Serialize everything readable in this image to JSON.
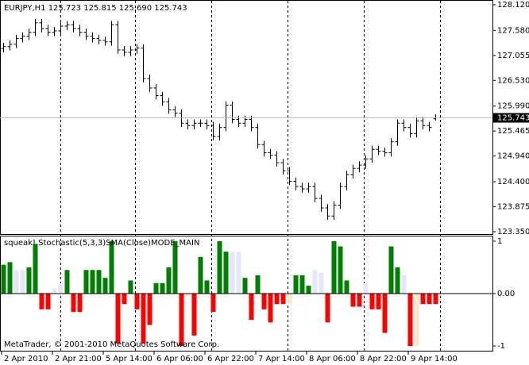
{
  "chart_data": [
    {
      "type": "ohlc",
      "title": "EURJPY,H1  125.723 125.815 125.690 125.743",
      "color": "#000000",
      "ylim": [
        123.3,
        128.203
      ],
      "yticks": [
        {
          "value": 128.12,
          "label": "128.120"
        },
        {
          "value": 127.58,
          "label": "127.580"
        },
        {
          "value": 127.055,
          "label": "127.055"
        },
        {
          "value": 126.53,
          "label": "126.530"
        },
        {
          "value": 125.99,
          "label": "125.990"
        },
        {
          "value": 125.465,
          "label": "125.465"
        },
        {
          "value": 124.94,
          "label": "124.940"
        },
        {
          "value": 124.4,
          "label": "124.400"
        },
        {
          "value": 123.875,
          "label": "123.875"
        },
        {
          "value": 123.35,
          "label": "123.350"
        }
      ],
      "last_price_label": "125.743",
      "open": [
        127.2,
        127.24,
        127.29,
        127.41,
        127.46,
        127.54,
        127.74,
        127.62,
        127.54,
        127.57,
        127.67,
        127.7,
        127.62,
        127.54,
        127.46,
        127.41,
        127.37,
        127.34,
        127.7,
        127.17,
        127.12,
        127.17,
        127.21,
        126.57,
        126.37,
        126.21,
        126.08,
        125.91,
        125.84,
        125.63,
        125.58,
        125.63,
        125.63,
        125.58,
        125.35,
        125.54,
        126.01,
        125.71,
        125.63,
        125.71,
        125.54,
        125.18,
        125.01,
        124.96,
        124.8,
        124.63,
        124.41,
        124.3,
        124.25,
        124.3,
        124.05,
        123.85,
        123.68,
        123.91,
        124.3,
        124.55,
        124.68,
        124.75,
        124.88,
        125.08,
        125.04,
        125.01,
        125.24,
        125.63,
        125.54,
        125.41,
        125.68,
        125.58,
        125.723
      ],
      "high": [
        127.32,
        127.37,
        127.49,
        127.54,
        127.62,
        127.82,
        127.82,
        127.7,
        127.65,
        127.75,
        127.78,
        127.78,
        127.7,
        127.62,
        127.54,
        127.49,
        127.45,
        127.78,
        127.78,
        127.25,
        127.25,
        127.29,
        127.29,
        126.65,
        126.45,
        126.29,
        126.16,
        125.99,
        125.92,
        125.71,
        125.71,
        125.71,
        125.71,
        125.66,
        125.62,
        126.09,
        126.09,
        125.79,
        125.79,
        125.79,
        125.62,
        125.26,
        125.09,
        125.04,
        124.88,
        124.71,
        124.49,
        124.38,
        124.38,
        124.38,
        124.13,
        123.93,
        123.99,
        124.38,
        124.63,
        124.76,
        124.83,
        124.96,
        125.16,
        125.16,
        125.12,
        125.32,
        125.71,
        125.71,
        125.62,
        125.76,
        125.76,
        125.66,
        125.815
      ],
      "low": [
        127.12,
        127.16,
        127.21,
        127.33,
        127.38,
        127.46,
        127.54,
        127.46,
        127.46,
        127.49,
        127.59,
        127.54,
        127.46,
        127.38,
        127.33,
        127.29,
        127.26,
        127.26,
        127.09,
        127.04,
        127.04,
        127.09,
        126.49,
        126.29,
        126.13,
        126.0,
        125.83,
        125.76,
        125.55,
        125.5,
        125.5,
        125.55,
        125.5,
        125.27,
        125.27,
        125.46,
        125.63,
        125.55,
        125.55,
        125.46,
        125.1,
        124.93,
        124.88,
        124.72,
        124.55,
        124.33,
        124.22,
        124.17,
        124.17,
        123.97,
        123.77,
        123.6,
        123.6,
        123.83,
        124.22,
        124.47,
        124.6,
        124.67,
        124.8,
        124.96,
        124.93,
        124.93,
        125.16,
        125.46,
        125.33,
        125.33,
        125.5,
        125.46,
        125.69
      ],
      "close": [
        127.24,
        127.29,
        127.41,
        127.46,
        127.54,
        127.74,
        127.62,
        127.54,
        127.57,
        127.67,
        127.7,
        127.62,
        127.54,
        127.46,
        127.41,
        127.37,
        127.34,
        127.7,
        127.17,
        127.12,
        127.17,
        127.21,
        126.57,
        126.37,
        126.21,
        126.08,
        125.91,
        125.84,
        125.63,
        125.58,
        125.63,
        125.63,
        125.58,
        125.35,
        125.54,
        126.01,
        125.71,
        125.63,
        125.71,
        125.54,
        125.18,
        125.01,
        124.96,
        124.8,
        124.63,
        124.41,
        124.3,
        124.25,
        124.3,
        124.05,
        123.85,
        123.68,
        123.91,
        124.3,
        124.55,
        124.68,
        124.75,
        124.88,
        125.08,
        125.04,
        125.01,
        125.24,
        125.63,
        125.54,
        125.41,
        125.68,
        125.58,
        125.54,
        125.743
      ]
    },
    {
      "type": "bar",
      "title": "squeak! Stochastic(5,3,3)SMA(Close)MODE_MAIN",
      "ylim": [
        -1.09,
        1.09
      ],
      "yticks": [
        1,
        {
          "value": 0,
          "label": "0.00"
        },
        -1
      ],
      "values": [
        0.55,
        0.6,
        0.45,
        0.45,
        0.5,
        0.95,
        -0.3,
        -0.3,
        0.1,
        0.2,
        0.45,
        -0.35,
        -0.35,
        0.45,
        0.45,
        0.45,
        0.3,
        1,
        -0.95,
        -0.2,
        0.25,
        -0.3,
        -0.95,
        -0.6,
        0.2,
        0.2,
        0.5,
        1,
        -1,
        -0.05,
        -0.8,
        0.7,
        0.25,
        -0.35,
        1,
        0.8,
        0.8,
        0.8,
        0.3,
        -0.5,
        0.35,
        -0.3,
        -0.55,
        -0.2,
        -0.2,
        -0.2,
        0.35,
        0.35,
        0.15,
        0.45,
        0.4,
        -0.55,
        1,
        0.9,
        0.25,
        -0.25,
        -0.25,
        0.2,
        -0.3,
        -0.3,
        -0.75,
        0.9,
        0.5,
        0.35,
        -1,
        -1,
        -0.2,
        -0.2,
        -0.2
      ],
      "colors": [
        "#008000",
        "#008000",
        "#e6e6fa",
        "#e6e6fa",
        "#008000",
        "#008000",
        "#ff0000",
        "#ff0000",
        "#e6e6fa",
        "#e6e6fa",
        "#008000",
        "#ff0000",
        "#ff0000",
        "#008000",
        "#008000",
        "#008000",
        "#008000",
        "#008000",
        "#ff0000",
        "#ff0000",
        "#008000",
        "#ff0000",
        "#ff0000",
        "#ff0000",
        "#008000",
        "#008000",
        "#008000",
        "#008000",
        "#ff0000",
        "#ffe4d0",
        "#ff0000",
        "#008000",
        "#008000",
        "#ff0000",
        "#008000",
        "#008000",
        "#e6e6fa",
        "#e6e6fa",
        "#008000",
        "#ff0000",
        "#008000",
        "#ff0000",
        "#ff0000",
        "#ff0000",
        "#ff0000",
        "#ffe4d0",
        "#008000",
        "#008000",
        "#008000",
        "#e6e6fa",
        "#e6e6fa",
        "#ff0000",
        "#008000",
        "#008000",
        "#008000",
        "#ff0000",
        "#ff0000",
        "#e6e6fa",
        "#ff0000",
        "#ff0000",
        "#ff0000",
        "#008000",
        "#008000",
        "#e6e6fa",
        "#ff0000",
        "#ffe4d0",
        "#ff0000",
        "#ff0000",
        "#ff0000"
      ]
    }
  ],
  "footer": "MetaTrader, © 2001-2010 MetaQuotes Software Corp.",
  "time_labels": [
    "2 Apr 2010",
    "2 Apr 21:00",
    "5 Apr 14:00",
    "6 Apr 06:00",
    "6 Apr 22:00",
    "7 Apr 14:00",
    "8 Apr 06:00",
    "8 Apr 22:00",
    "9 Apr 14:00"
  ]
}
